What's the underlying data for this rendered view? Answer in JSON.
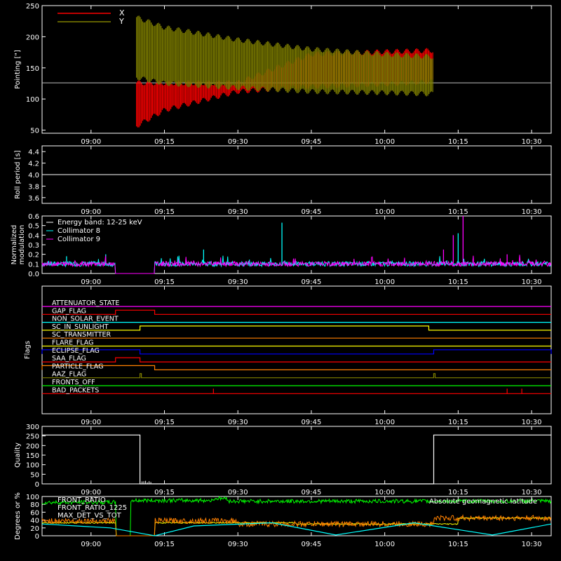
{
  "time_ticks": [
    "09:00",
    "09:15",
    "09:30",
    "09:45",
    "10:00",
    "10:15",
    "10:30"
  ],
  "time_range": [
    "08:50",
    "10:34"
  ],
  "chart_data": [
    {
      "type": "line",
      "ylabel": "Pointing [\"]",
      "ylim": [
        45,
        250
      ],
      "yticks": [
        50,
        100,
        150,
        200,
        250
      ],
      "legend": "top-left",
      "series": [
        {
          "name": "X",
          "color": "#ff0000",
          "note_values": "oscillation envelope (min/max) in arcsec",
          "t": [
            "08:50",
            "09:09",
            "09:09",
            "09:15",
            "09:30",
            "09:45",
            "10:00",
            "10:10",
            "10:10",
            "10:34"
          ],
          "min": [
            126,
            126,
            55,
            82,
            112,
            120,
            124,
            128,
            126,
            126
          ],
          "max": [
            126,
            126,
            126,
            126,
            126,
            172,
            176,
            178,
            126,
            126
          ]
        },
        {
          "name": "Y",
          "color": "#808000",
          "t": [
            "08:50",
            "09:09",
            "09:09",
            "09:15",
            "09:30",
            "09:45",
            "10:00",
            "10:10",
            "10:10",
            "10:34"
          ],
          "min": [
            126,
            126,
            135,
            125,
            118,
            112,
            110,
            108,
            126,
            126
          ],
          "max": [
            126,
            126,
            232,
            215,
            195,
            180,
            172,
            168,
            126,
            126
          ]
        }
      ]
    },
    {
      "type": "line",
      "ylabel": "Roll period [s]",
      "ylim": [
        3.5,
        4.5
      ],
      "yticks": [
        3.6,
        3.8,
        4.0,
        4.2,
        4.4
      ],
      "series": [
        {
          "name": "",
          "color": "#ffffff",
          "t": [
            "08:50",
            "10:34"
          ],
          "values": [
            4.0,
            4.0
          ]
        }
      ]
    },
    {
      "type": "line",
      "ylabel": "Normalized modulation",
      "ylim": [
        0,
        0.6
      ],
      "yticks": [
        0.0,
        0.1,
        0.2,
        0.3,
        0.4,
        0.5,
        0.6
      ],
      "legend_title": "Energy band: 12-25 keV",
      "series": [
        {
          "name": "Collimator 8",
          "color": "#00ffff",
          "baseline": 0.1,
          "gaps": [
            [
              "09:05",
              "09:13"
            ]
          ],
          "spikes": [
            [
              "09:23",
              0.25
            ],
            [
              "09:39",
              0.53
            ],
            [
              "10:15",
              0.42
            ],
            [
              "09:03",
              0.2
            ],
            [
              "08:55",
              0.18
            ]
          ]
        },
        {
          "name": "Collimator 9",
          "color": "#ff00ff",
          "baseline": 0.1,
          "gaps": [
            [
              "09:05",
              "09:13"
            ]
          ],
          "spikes": [
            [
              "10:16",
              0.6
            ],
            [
              "10:14",
              0.4
            ],
            [
              "10:12",
              0.25
            ],
            [
              "10:25",
              0.2
            ]
          ]
        }
      ]
    },
    {
      "type": "line",
      "ylabel": "Flags",
      "flags": [
        {
          "name": "ATTENUATOR_STATE",
          "color": "#ff00ff",
          "on": []
        },
        {
          "name": "GAP_FLAG",
          "color": "#ff0000",
          "on": [
            [
              "09:05",
              "09:13"
            ]
          ]
        },
        {
          "name": "NON_SOLAR_EVENT",
          "color": "#00ffff",
          "on": []
        },
        {
          "name": "SC_IN_SUNLIGHT",
          "color": "#ffff00",
          "on": [
            [
              "09:10",
              "10:09"
            ]
          ]
        },
        {
          "name": "SC_TRANSMITTER",
          "color": "#ff8000",
          "on": []
        },
        {
          "name": "FLARE_FLAG",
          "color": "#ffff00",
          "on": []
        },
        {
          "name": "ECLIPSE_FLAG",
          "color": "#0000ff",
          "on": [
            [
              "08:50",
              "09:10"
            ],
            [
              "10:10",
              "10:34"
            ]
          ]
        },
        {
          "name": "SAA_FLAG",
          "color": "#ff0000",
          "on": [
            [
              "09:05",
              "09:10"
            ]
          ]
        },
        {
          "name": "PARTICLE_FLAG",
          "color": "#ff8000",
          "on": [
            [
              "08:50",
              "09:13"
            ]
          ]
        },
        {
          "name": "AAZ_FLAG",
          "color": "#808000",
          "on": [
            [
              "09:10",
              "09:10"
            ],
            [
              "10:10",
              "10:10"
            ]
          ]
        },
        {
          "name": "FRONTS_OFF",
          "color": "#00ff00",
          "on": []
        },
        {
          "name": "BAD_PACKETS",
          "color": "#ff0000",
          "on": [
            [
              "09:25",
              "09:25"
            ],
            [
              "10:25",
              "10:25"
            ],
            [
              "10:28",
              "10:28"
            ]
          ]
        }
      ]
    },
    {
      "type": "line",
      "ylabel": "Quality",
      "ylim": [
        0,
        300
      ],
      "yticks": [
        0,
        50,
        100,
        150,
        200,
        250,
        300
      ],
      "series": [
        {
          "name": "",
          "color": "#ffffff",
          "t": [
            "08:50",
            "09:10",
            "09:10",
            "10:10",
            "10:10",
            "10:34"
          ],
          "values": [
            255,
            255,
            0,
            0,
            255,
            255
          ]
        }
      ]
    },
    {
      "type": "line",
      "ylabel": "Degrees or %",
      "ylim": [
        0,
        100
      ],
      "yticks": [
        0,
        20,
        40,
        60,
        80,
        100
      ],
      "series": [
        {
          "name": "FRONT_RATIO",
          "color": "#ffff00",
          "level": [
            [
              "08:50",
              33
            ],
            [
              "09:05",
              0
            ],
            [
              "09:13",
              33
            ],
            [
              "09:42",
              30
            ],
            [
              "10:15",
              45
            ],
            [
              "10:34",
              33
            ]
          ]
        },
        {
          "name": "FRONT_RATIO_1225",
          "color": "#00ff00",
          "level": [
            [
              "08:50",
              85
            ],
            [
              "09:05",
              0
            ],
            [
              "09:08",
              90
            ],
            [
              "09:25",
              95
            ],
            [
              "09:28",
              88
            ],
            [
              "10:34",
              85
            ]
          ]
        },
        {
          "name": "MAX_DET_VS_TOT",
          "color": "#ff8000",
          "level": [
            [
              "08:50",
              38
            ],
            [
              "09:05",
              0
            ],
            [
              "09:13",
              38
            ],
            [
              "09:30",
              30
            ],
            [
              "10:10",
              45
            ],
            [
              "10:34",
              38
            ]
          ]
        },
        {
          "name": "Absolute geomagnetic latitude",
          "color": "#00ffff",
          "t": [
            "08:50",
            "09:04",
            "09:13",
            "09:21",
            "09:37",
            "09:50",
            "10:06",
            "10:22",
            "10:34"
          ],
          "values": [
            30,
            20,
            0,
            25,
            33,
            2,
            33,
            2,
            30
          ]
        }
      ]
    }
  ]
}
